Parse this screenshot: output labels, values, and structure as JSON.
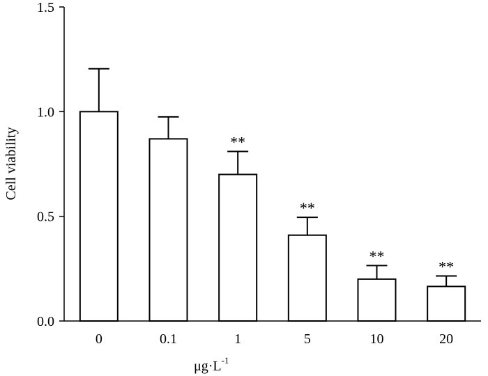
{
  "chart_data": {
    "type": "bar",
    "categories": [
      "0",
      "0.1",
      "1",
      "5",
      "10",
      "20"
    ],
    "values": [
      1.0,
      0.87,
      0.7,
      0.41,
      0.2,
      0.165
    ],
    "errors": [
      0.205,
      0.105,
      0.11,
      0.085,
      0.065,
      0.05
    ],
    "significance": [
      "",
      "",
      "**",
      "**",
      "**",
      "**"
    ],
    "ylabel": "Cell viability",
    "xlabel_main": "μg·L",
    "xlabel_sup": "-1",
    "ylim": [
      0,
      1.5
    ],
    "yticks": [
      "0.0",
      "0.5",
      "1.0",
      "1.5"
    ],
    "grid": false,
    "legend": "none"
  }
}
